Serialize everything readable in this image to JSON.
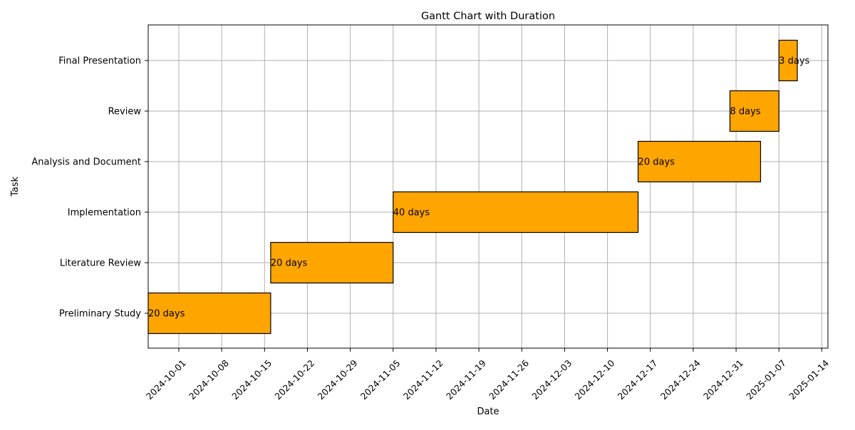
{
  "chart_data": {
    "type": "gantt",
    "title": "Gantt Chart with Duration",
    "xlabel": "Date",
    "ylabel": "Task",
    "x_ticks": [
      "2024-10-01",
      "2024-10-08",
      "2024-10-15",
      "2024-10-22",
      "2024-10-29",
      "2024-11-05",
      "2024-11-12",
      "2024-11-19",
      "2024-11-26",
      "2024-12-03",
      "2024-12-10",
      "2024-12-17",
      "2024-12-24",
      "2024-12-31",
      "2025-01-07",
      "2025-01-14"
    ],
    "xlim": [
      "2024-09-26",
      "2025-01-15"
    ],
    "grid": true,
    "bar_color": "#FFA500",
    "bar_edge_color": "#000000",
    "tasks": [
      {
        "name": "Preliminary Study",
        "start": "2024-09-26",
        "end": "2024-10-16",
        "label": "20 days"
      },
      {
        "name": "Literature Review",
        "start": "2024-10-16",
        "end": "2024-11-05",
        "label": "20 days"
      },
      {
        "name": "Implementation",
        "start": "2024-11-05",
        "end": "2024-12-15",
        "label": "40 days"
      },
      {
        "name": "Analysis and Document",
        "start": "2024-12-15",
        "end": "2025-01-04",
        "label": "20 days"
      },
      {
        "name": "Review",
        "start": "2024-12-30",
        "end": "2025-01-07",
        "label": "8 days"
      },
      {
        "name": "Final Presentation",
        "start": "2025-01-07",
        "end": "2025-01-10",
        "label": "3 days"
      }
    ]
  }
}
